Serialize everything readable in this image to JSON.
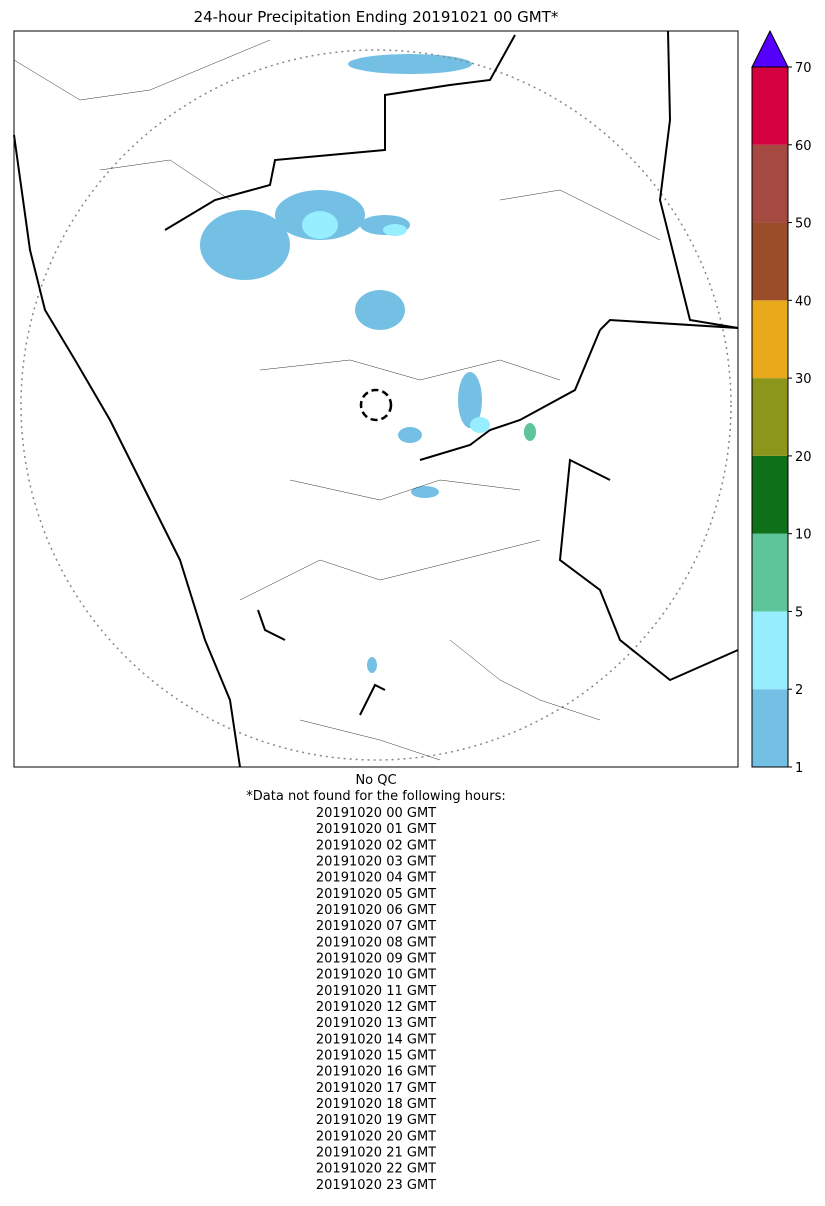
{
  "title": "24-hour Precipitation Ending 20191021 00 GMT*",
  "colorbar": {
    "ticks": [
      1,
      2,
      5,
      10,
      20,
      30,
      40,
      50,
      60,
      70
    ],
    "colors": [
      "#74c0e4",
      "#96eefe",
      "#5ec59a",
      "#0e7119",
      "#8c961a",
      "#e8a91b",
      "#9b4c28",
      "#a54a40",
      "#d4003f"
    ],
    "extend_color": "#5500ff"
  },
  "notes": {
    "qc": "No QC",
    "missing_header": "*Data not found for the following hours:",
    "missing_hours": [
      "20191020 00 GMT",
      "20191020 01 GMT",
      "20191020 02 GMT",
      "20191020 03 GMT",
      "20191020 04 GMT",
      "20191020 05 GMT",
      "20191020 06 GMT",
      "20191020 07 GMT",
      "20191020 08 GMT",
      "20191020 09 GMT",
      "20191020 10 GMT",
      "20191020 11 GMT",
      "20191020 12 GMT",
      "20191020 13 GMT",
      "20191020 14 GMT",
      "20191020 15 GMT",
      "20191020 16 GMT",
      "20191020 17 GMT",
      "20191020 18 GMT",
      "20191020 19 GMT",
      "20191020 20 GMT",
      "20191020 21 GMT",
      "20191020 22 GMT",
      "20191020 23 GMT"
    ]
  }
}
